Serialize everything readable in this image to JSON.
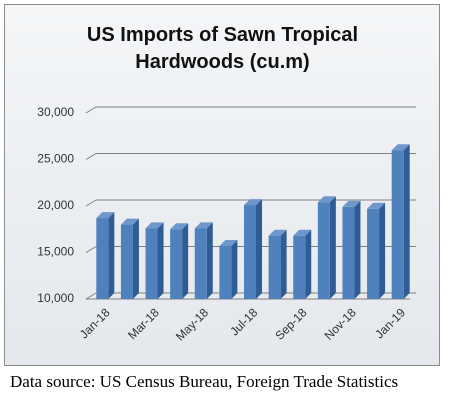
{
  "chart_data": {
    "type": "bar",
    "title": "US Imports of Sawn Tropical Hardwoods (cu.m)",
    "categories": [
      "Jan-18",
      null,
      "Mar-18",
      null,
      "May-18",
      null,
      "Jul-18",
      null,
      "Sep-18",
      null,
      "Nov-18",
      null,
      "Jan-19"
    ],
    "values": [
      18700,
      18000,
      17600,
      17500,
      17600,
      15700,
      20100,
      16800,
      16800,
      20400,
      19900,
      19700,
      26000
    ],
    "color": "#4f81bd",
    "ylim": [
      10000,
      30000
    ],
    "yticks": [
      {
        "value": 10000,
        "label": "10,000"
      },
      {
        "value": 15000,
        "label": "15,000"
      },
      {
        "value": 20000,
        "label": "20,000"
      },
      {
        "value": 25000,
        "label": "25,000"
      },
      {
        "value": 30000,
        "label": "30,000"
      }
    ],
    "grid": true
  },
  "source": "Data source: US Census Bureau, Foreign Trade Statistics"
}
